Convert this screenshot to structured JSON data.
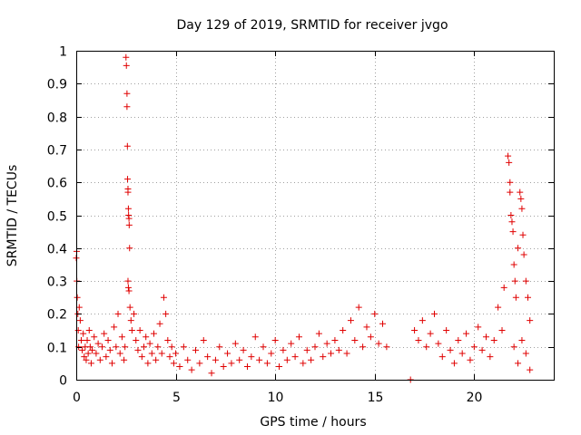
{
  "chart_data": {
    "type": "scatter",
    "title": "Day 129 of 2019, SRMTID for receiver jvgo",
    "xlabel": "GPS time / hours",
    "ylabel": "SRMTID / TECUs",
    "xlim": [
      0,
      24
    ],
    "ylim": [
      0,
      1
    ],
    "xticks": [
      0,
      5,
      10,
      15,
      20
    ],
    "yticks": [
      0,
      0.1,
      0.2,
      0.3,
      0.4,
      0.5,
      0.6,
      0.7,
      0.8,
      0.9,
      1
    ],
    "xtick_labels": [
      "0",
      "5",
      "10",
      "15",
      "20"
    ],
    "ytick_labels": [
      "0",
      "0.1",
      "0.2",
      "0.3",
      "0.4",
      "0.5",
      "0.6",
      "0.7",
      "0.8",
      "0.9",
      "1"
    ],
    "grid": true,
    "marker": "+",
    "marker_color": "#e00000",
    "series": [
      {
        "name": "SRMTID",
        "points": [
          [
            0.0,
            0.37
          ],
          [
            0.02,
            0.39
          ],
          [
            0.03,
            0.3
          ],
          [
            0.05,
            0.25
          ],
          [
            0.08,
            0.2
          ],
          [
            0.1,
            0.15
          ],
          [
            0.12,
            0.1
          ],
          [
            0.15,
            0.22
          ],
          [
            0.2,
            0.18
          ],
          [
            0.25,
            0.12
          ],
          [
            0.3,
            0.09
          ],
          [
            0.35,
            0.14
          ],
          [
            0.4,
            0.07
          ],
          [
            0.45,
            0.1
          ],
          [
            0.5,
            0.06
          ],
          [
            0.55,
            0.12
          ],
          [
            0.6,
            0.08
          ],
          [
            0.65,
            0.15
          ],
          [
            0.7,
            0.1
          ],
          [
            0.75,
            0.05
          ],
          [
            0.8,
            0.09
          ],
          [
            0.9,
            0.13
          ],
          [
            1.0,
            0.08
          ],
          [
            1.1,
            0.11
          ],
          [
            1.2,
            0.06
          ],
          [
            1.3,
            0.1
          ],
          [
            1.4,
            0.14
          ],
          [
            1.5,
            0.07
          ],
          [
            1.6,
            0.12
          ],
          [
            1.7,
            0.09
          ],
          [
            1.8,
            0.05
          ],
          [
            1.9,
            0.16
          ],
          [
            2.0,
            0.1
          ],
          [
            2.1,
            0.2
          ],
          [
            2.2,
            0.08
          ],
          [
            2.3,
            0.13
          ],
          [
            2.4,
            0.06
          ],
          [
            2.45,
            0.1
          ],
          [
            2.5,
            0.98
          ],
          [
            2.52,
            0.955
          ],
          [
            2.55,
            0.87
          ],
          [
            2.55,
            0.83
          ],
          [
            2.57,
            0.71
          ],
          [
            2.58,
            0.61
          ],
          [
            2.6,
            0.58
          ],
          [
            2.6,
            0.57
          ],
          [
            2.62,
            0.52
          ],
          [
            2.63,
            0.5
          ],
          [
            2.65,
            0.49
          ],
          [
            2.66,
            0.47
          ],
          [
            2.68,
            0.4
          ],
          [
            2.6,
            0.3
          ],
          [
            2.62,
            0.28
          ],
          [
            2.65,
            0.27
          ],
          [
            2.7,
            0.22
          ],
          [
            2.75,
            0.18
          ],
          [
            2.8,
            0.15
          ],
          [
            2.9,
            0.2
          ],
          [
            3.0,
            0.12
          ],
          [
            3.1,
            0.09
          ],
          [
            3.2,
            0.15
          ],
          [
            3.3,
            0.07
          ],
          [
            3.4,
            0.1
          ],
          [
            3.5,
            0.13
          ],
          [
            3.6,
            0.05
          ],
          [
            3.7,
            0.11
          ],
          [
            3.8,
            0.08
          ],
          [
            3.9,
            0.14
          ],
          [
            4.0,
            0.06
          ],
          [
            4.1,
            0.1
          ],
          [
            4.2,
            0.17
          ],
          [
            4.3,
            0.08
          ],
          [
            4.4,
            0.25
          ],
          [
            4.5,
            0.2
          ],
          [
            4.6,
            0.12
          ],
          [
            4.7,
            0.07
          ],
          [
            4.8,
            0.1
          ],
          [
            4.9,
            0.05
          ],
          [
            5.0,
            0.08
          ],
          [
            5.2,
            0.04
          ],
          [
            5.4,
            0.1
          ],
          [
            5.6,
            0.06
          ],
          [
            5.8,
            0.03
          ],
          [
            6.0,
            0.09
          ],
          [
            6.2,
            0.05
          ],
          [
            6.4,
            0.12
          ],
          [
            6.6,
            0.07
          ],
          [
            6.8,
            0.02
          ],
          [
            7.0,
            0.06
          ],
          [
            7.2,
            0.1
          ],
          [
            7.4,
            0.04
          ],
          [
            7.6,
            0.08
          ],
          [
            7.8,
            0.05
          ],
          [
            8.0,
            0.11
          ],
          [
            8.2,
            0.06
          ],
          [
            8.4,
            0.09
          ],
          [
            8.6,
            0.04
          ],
          [
            8.8,
            0.07
          ],
          [
            9.0,
            0.13
          ],
          [
            9.2,
            0.06
          ],
          [
            9.4,
            0.1
          ],
          [
            9.6,
            0.05
          ],
          [
            9.8,
            0.08
          ],
          [
            10.0,
            0.12
          ],
          [
            10.2,
            0.04
          ],
          [
            10.4,
            0.09
          ],
          [
            10.6,
            0.06
          ],
          [
            10.8,
            0.11
          ],
          [
            11.0,
            0.07
          ],
          [
            11.2,
            0.13
          ],
          [
            11.4,
            0.05
          ],
          [
            11.6,
            0.09
          ],
          [
            11.8,
            0.06
          ],
          [
            12.0,
            0.1
          ],
          [
            12.2,
            0.14
          ],
          [
            12.4,
            0.07
          ],
          [
            12.6,
            0.11
          ],
          [
            12.8,
            0.08
          ],
          [
            13.0,
            0.12
          ],
          [
            13.2,
            0.09
          ],
          [
            13.4,
            0.15
          ],
          [
            13.6,
            0.08
          ],
          [
            13.8,
            0.18
          ],
          [
            14.0,
            0.12
          ],
          [
            14.2,
            0.22
          ],
          [
            14.4,
            0.1
          ],
          [
            14.6,
            0.16
          ],
          [
            14.8,
            0.13
          ],
          [
            15.0,
            0.2
          ],
          [
            15.2,
            0.11
          ],
          [
            15.4,
            0.17
          ],
          [
            15.6,
            0.1
          ],
          [
            16.8,
            0.0
          ],
          [
            17.0,
            0.15
          ],
          [
            17.2,
            0.12
          ],
          [
            17.4,
            0.18
          ],
          [
            17.6,
            0.1
          ],
          [
            17.8,
            0.14
          ],
          [
            18.0,
            0.2
          ],
          [
            18.2,
            0.11
          ],
          [
            18.4,
            0.07
          ],
          [
            18.6,
            0.15
          ],
          [
            18.8,
            0.09
          ],
          [
            19.0,
            0.05
          ],
          [
            19.2,
            0.12
          ],
          [
            19.4,
            0.08
          ],
          [
            19.6,
            0.14
          ],
          [
            19.8,
            0.06
          ],
          [
            20.0,
            0.1
          ],
          [
            20.2,
            0.16
          ],
          [
            20.4,
            0.09
          ],
          [
            20.6,
            0.13
          ],
          [
            20.8,
            0.07
          ],
          [
            21.0,
            0.12
          ],
          [
            21.2,
            0.22
          ],
          [
            21.4,
            0.15
          ],
          [
            21.5,
            0.28
          ],
          [
            21.7,
            0.68
          ],
          [
            21.75,
            0.66
          ],
          [
            21.8,
            0.6
          ],
          [
            21.8,
            0.57
          ],
          [
            21.85,
            0.5
          ],
          [
            21.9,
            0.48
          ],
          [
            21.95,
            0.45
          ],
          [
            22.0,
            0.35
          ],
          [
            22.05,
            0.3
          ],
          [
            22.1,
            0.25
          ],
          [
            22.2,
            0.4
          ],
          [
            22.3,
            0.57
          ],
          [
            22.35,
            0.55
          ],
          [
            22.4,
            0.52
          ],
          [
            22.45,
            0.44
          ],
          [
            22.5,
            0.38
          ],
          [
            22.6,
            0.3
          ],
          [
            22.7,
            0.25
          ],
          [
            22.8,
            0.18
          ],
          [
            22.0,
            0.1
          ],
          [
            22.2,
            0.05
          ],
          [
            22.4,
            0.12
          ],
          [
            22.6,
            0.08
          ],
          [
            22.8,
            0.03
          ]
        ]
      }
    ]
  }
}
